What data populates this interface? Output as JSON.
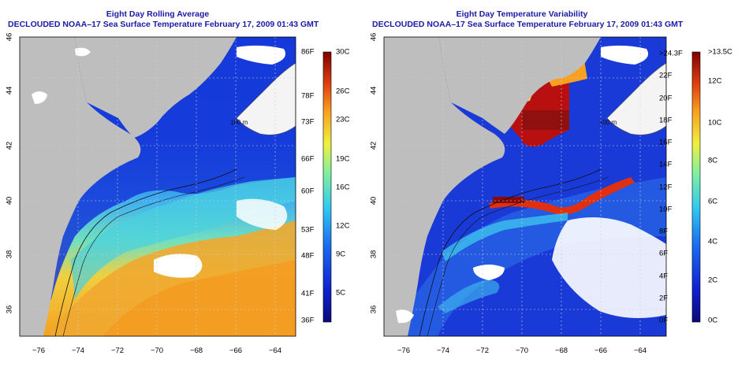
{
  "left_panel": {
    "title_line1": "Eight Day Rolling Average",
    "title_line2": "DECLOUDED NOAA–17 Sea Surface Temperature February 17, 2009 01:43 GMT",
    "lat_ticks": [
      "36",
      "38",
      "40",
      "42",
      "44",
      "46"
    ],
    "lon_ticks": [
      "−76",
      "−74",
      "−72",
      "−70",
      "−68",
      "−66",
      "−64"
    ],
    "colorbar_left_labels": [
      "86F",
      "78F",
      "73F",
      "66F",
      "60F",
      "53F",
      "48F",
      "41F",
      "36F"
    ],
    "colorbar_right_labels": [
      "30C",
      "26C",
      "23C",
      "19C",
      "16C",
      "12C",
      "9C",
      "5C"
    ],
    "depth_label": "100 m"
  },
  "right_panel": {
    "title_line1": "Eight Day Temperature Variability",
    "title_line2": "DECLOUDED NOAA–17 Sea Surface Temperature February 17, 2009 01:43 GMT",
    "lat_ticks": [
      "36",
      "38",
      "40",
      "42",
      "44",
      "46"
    ],
    "lon_ticks": [
      "−76",
      "−74",
      "−72",
      "−70",
      "−68",
      "−66",
      "−64"
    ],
    "colorbar_left_labels": [
      ">24.3F",
      "22F",
      "20F",
      "18F",
      "16F",
      "14F",
      "12F",
      "10F",
      "8F",
      "6F",
      "4F",
      "2F",
      "0F"
    ],
    "colorbar_right_labels": [
      ">13.5C",
      "12C",
      "10C",
      "8C",
      "6C",
      "4C",
      "2C",
      "0C"
    ],
    "depth_label": "100 m"
  },
  "colors": {
    "title": "#1a1aa6",
    "land": "#bebebe",
    "cloud": "#ffffff",
    "cold": "#0a1ab4",
    "warm": "#f5a020",
    "hot": "#a01010"
  }
}
